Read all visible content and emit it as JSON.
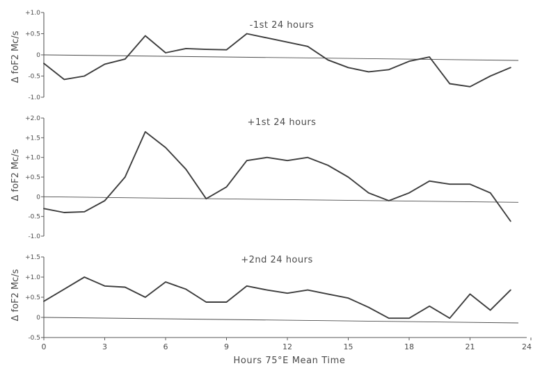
{
  "chart_data": [
    {
      "type": "line",
      "title": "-1st 24 hours",
      "ylabel": "Δ foF2 Mc/s",
      "xlim": [
        0,
        24
      ],
      "ylim": [
        -1.0,
        1.0
      ],
      "yticks": [
        "+1.0",
        "+0.5",
        "0",
        "-0.5",
        "-1.0"
      ],
      "series": [
        {
          "x": [
            0,
            1,
            2,
            3,
            4,
            5,
            6,
            7,
            8,
            9,
            10,
            11,
            12,
            13,
            14,
            15,
            16,
            17,
            18,
            19,
            20,
            21,
            22,
            23
          ],
          "y": [
            -0.2,
            -0.58,
            -0.5,
            -0.22,
            -0.1,
            0.45,
            0.05,
            0.15,
            0.13,
            0.12,
            0.5,
            0.4,
            0.3,
            0.2,
            -0.12,
            -0.3,
            -0.4,
            -0.35,
            -0.15,
            -0.05,
            -0.68,
            -0.75,
            -0.5,
            -0.3
          ]
        }
      ]
    },
    {
      "type": "line",
      "title": "+1st 24 hours",
      "ylabel": "Δ foF2 Mc/s",
      "xlim": [
        0,
        24
      ],
      "ylim": [
        -1.0,
        2.0
      ],
      "yticks": [
        "+2.0",
        "+1.5",
        "+1.0",
        "+0.5",
        "0",
        "-0.5",
        "-1.0"
      ],
      "series": [
        {
          "x": [
            0,
            1,
            2,
            3,
            4,
            5,
            6,
            7,
            8,
            9,
            10,
            11,
            12,
            13,
            14,
            15,
            16,
            17,
            18,
            19,
            20,
            21,
            22,
            23
          ],
          "y": [
            -0.3,
            -0.4,
            -0.38,
            -0.1,
            0.5,
            1.65,
            1.25,
            0.7,
            -0.05,
            0.25,
            0.92,
            1.0,
            0.92,
            1.0,
            0.8,
            0.5,
            0.1,
            -0.1,
            0.1,
            0.4,
            0.32,
            0.32,
            0.1,
            -0.62
          ]
        }
      ]
    },
    {
      "type": "line",
      "title": "+2nd 24 hours",
      "ylabel": "Δ foF2 Mc/s",
      "xlabel": "Hours 75°E Mean Time",
      "xlim": [
        0,
        24
      ],
      "ylim": [
        -0.5,
        1.5
      ],
      "yticks": [
        "+1.5",
        "+1.0",
        "+0.5",
        "0",
        "-0.5"
      ],
      "xticks": [
        "0",
        "3",
        "6",
        "9",
        "12",
        "15",
        "18",
        "21",
        "24"
      ],
      "series": [
        {
          "x": [
            0,
            1,
            2,
            3,
            4,
            5,
            6,
            7,
            8,
            9,
            10,
            11,
            12,
            13,
            14,
            15,
            16,
            17,
            18,
            19,
            20,
            21,
            22,
            23
          ],
          "y": [
            0.4,
            0.7,
            1.0,
            0.78,
            0.75,
            0.5,
            0.88,
            0.7,
            0.38,
            0.38,
            0.78,
            0.68,
            0.6,
            0.68,
            0.58,
            0.48,
            0.25,
            -0.02,
            -0.02,
            0.28,
            -0.02,
            0.58,
            0.18,
            0.68
          ]
        }
      ]
    }
  ]
}
